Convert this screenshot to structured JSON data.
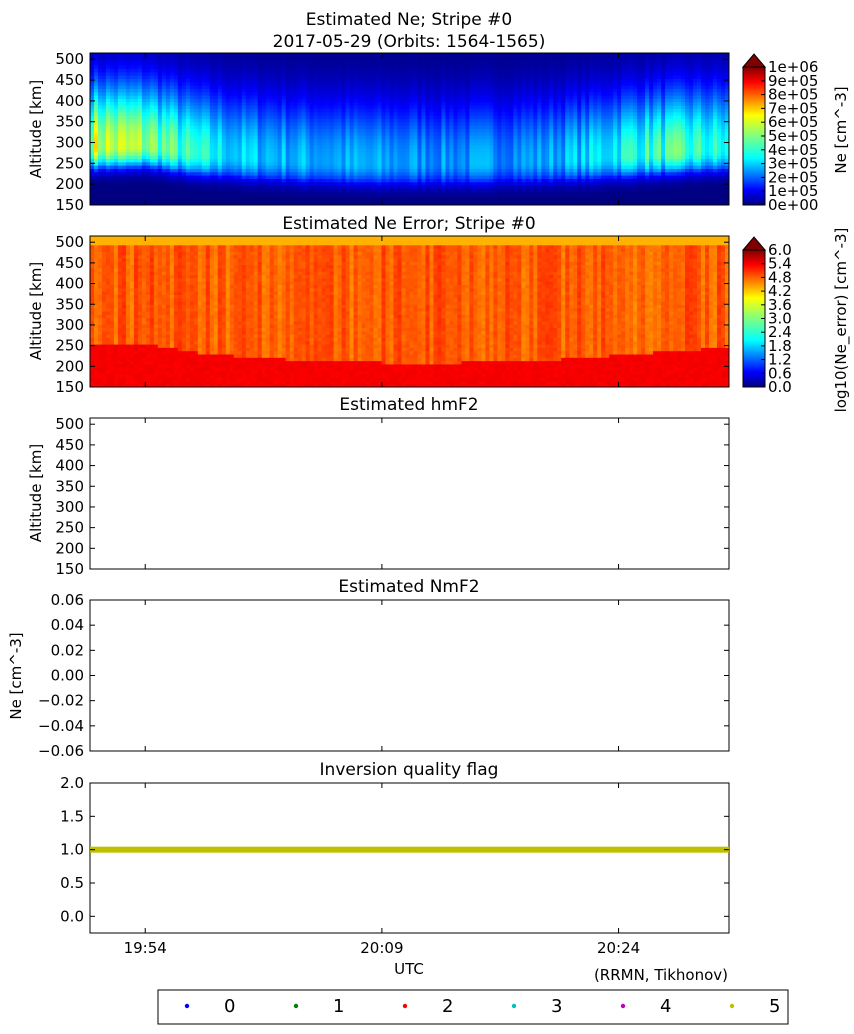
{
  "figure": {
    "credit": "(RRMN, Tikhonov)",
    "xlabel": "UTC",
    "x_ticks": [
      "19:54",
      "20:09",
      "20:24"
    ],
    "x_tick_minutes": [
      0,
      15,
      30
    ],
    "x_range_minutes": [
      -3.5,
      37.0
    ]
  },
  "chart_data": [
    {
      "id": "ne",
      "type": "heatmap",
      "title_lines": [
        "Estimated Ne; Stripe #0",
        "2017-05-29 (Orbits: 1564-1565)"
      ],
      "ylabel": "Altitude [km]",
      "y_ticks": [
        150,
        200,
        250,
        300,
        350,
        400,
        450,
        500
      ],
      "ylim": [
        150,
        515
      ],
      "colorbar": {
        "label": "Ne [cm^-3]",
        "ticks": [
          "0e+00",
          "1e+05",
          "2e+05",
          "3e+05",
          "4e+05",
          "5e+05",
          "6e+05",
          "7e+05",
          "8e+05",
          "9e+05",
          "1e+06"
        ],
        "range": [
          0,
          1000000
        ],
        "extend": "max",
        "colormap": "jet"
      },
      "description_fields": {
        "time_minutes": [
          -3.5,
          0,
          3,
          6,
          10,
          15,
          20,
          25,
          28,
          31,
          34,
          37
        ],
        "peak_altitude_km": [
          290,
          295,
          275,
          265,
          255,
          250,
          250,
          255,
          262,
          270,
          280,
          285
        ],
        "peak_ne": [
          580000,
          520000,
          400000,
          330000,
          300000,
          280000,
          270000,
          280000,
          330000,
          420000,
          430000,
          380000
        ]
      }
    },
    {
      "id": "ne_error",
      "type": "heatmap",
      "title_lines": [
        "Estimated Ne Error; Stripe #0"
      ],
      "ylabel": "Altitude [km]",
      "y_ticks": [
        150,
        200,
        250,
        300,
        350,
        400,
        450,
        500
      ],
      "ylim": [
        150,
        515
      ],
      "colorbar": {
        "label": "log10(Ne_error) [cm^-3]",
        "ticks": [
          "0.0",
          "0.6",
          "1.2",
          "1.8",
          "2.4",
          "3.0",
          "3.6",
          "4.2",
          "4.8",
          "5.4",
          "6.0"
        ],
        "range": [
          0,
          6
        ],
        "extend": "max",
        "colormap": "jet"
      },
      "typical_value": 4.7,
      "low_altitude_value": 5.3
    },
    {
      "id": "hmf2",
      "type": "scatter",
      "title_lines": [
        "Estimated hmF2"
      ],
      "ylabel": "Altitude [km]",
      "y_ticks": [
        "150",
        "200",
        "250",
        "300",
        "350",
        "400",
        "450",
        "500"
      ],
      "ylim": [
        150,
        515
      ],
      "series": []
    },
    {
      "id": "nmf2",
      "type": "scatter",
      "title_lines": [
        "Estimated NmF2"
      ],
      "ylabel": "Ne [cm^-3]",
      "y_ticks": [
        "0.06",
        "0.04",
        "0.02",
        "0.00",
        "−0.02",
        "−0.04",
        "−0.06"
      ],
      "ylim": [
        -0.06,
        0.06
      ],
      "series": []
    },
    {
      "id": "quality",
      "type": "scatter",
      "title_lines": [
        "Inversion quality flag"
      ],
      "ylabel": "",
      "y_ticks": [
        "2.0",
        "1.5",
        "1.0",
        "0.5",
        "0.0"
      ],
      "y_tick_values": [
        2.0,
        1.5,
        1.0,
        0.5,
        0.0
      ],
      "ylim": [
        -0.25,
        2.0
      ],
      "series": [
        {
          "name": "5",
          "value": 1.0,
          "x_start_minutes": -3.5,
          "x_end_minutes": 37.0,
          "color": "#bfbf00"
        }
      ]
    }
  ],
  "legend": {
    "entries": [
      {
        "label": "0",
        "color": "#0000ff"
      },
      {
        "label": "1",
        "color": "#008000"
      },
      {
        "label": "2",
        "color": "#ff0000"
      },
      {
        "label": "3",
        "color": "#00bfbf"
      },
      {
        "label": "4",
        "color": "#bf00bf"
      },
      {
        "label": "5",
        "color": "#bfbf00"
      }
    ]
  }
}
